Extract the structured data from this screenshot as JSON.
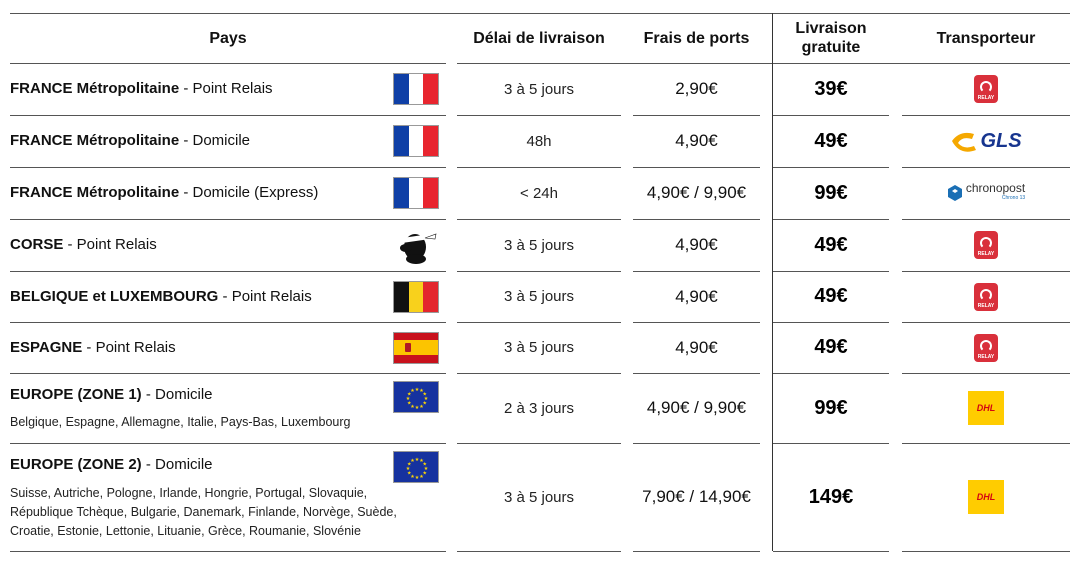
{
  "headers": {
    "pays": "Pays",
    "delai": "Délai de livraison",
    "frais": "Frais de ports",
    "livraison_line1": "Livraison",
    "livraison_line2": "gratuite",
    "transporteur": "Transporteur"
  },
  "rows": [
    {
      "name_bold": "FRANCE Métropolitaine",
      "name_rest": " - Point Relais",
      "flag": "france-flag",
      "delay": "3 à 5 jours",
      "fees": "2,90€",
      "free": "39€",
      "carrier": "mondial-relay-logo",
      "carrier_text": "RELAY"
    },
    {
      "name_bold": "FRANCE Métropolitaine",
      "name_rest": " - Domicile",
      "flag": "france-flag",
      "delay": "48h",
      "fees": "4,90€",
      "free": "49€",
      "carrier": "gls-logo",
      "carrier_text": "GLS"
    },
    {
      "name_bold": "FRANCE Métropolitaine",
      "name_rest": " - Domicile (Express)",
      "flag": "france-flag",
      "delay": "< 24h",
      "fees": "4,90€  / 9,90€",
      "free": "99€",
      "carrier": "chronopost-logo",
      "carrier_text": "chronopost",
      "carrier_sub": "Chrono 13"
    },
    {
      "name_bold": "CORSE",
      "name_rest": " - Point Relais",
      "flag": "corsica-flag",
      "delay": "3 à 5 jours",
      "fees": "4,90€",
      "free": "49€",
      "carrier": "mondial-relay-logo",
      "carrier_text": "RELAY"
    },
    {
      "name_bold": "BELGIQUE et LUXEMBOURG",
      "name_rest": " - Point Relais",
      "flag": "belgium-flag",
      "delay": "3 à 5 jours",
      "fees": "4,90€",
      "free": "49€",
      "carrier": "mondial-relay-logo",
      "carrier_text": "RELAY"
    },
    {
      "name_bold": "ESPAGNE",
      "name_rest": " - Point Relais",
      "flag": "spain-flag",
      "delay": "3 à 5 jours",
      "fees": "4,90€",
      "free": "49€",
      "carrier": "mondial-relay-logo",
      "carrier_text": "RELAY"
    },
    {
      "name_bold": "EUROPE (ZONE 1)",
      "name_rest": " - Domicile",
      "flag": "eu-flag",
      "sub": "Belgique, Espagne, Allemagne, Italie, Pays-Bas, Luxembourg",
      "delay": "2 à 3 jours",
      "fees": "4,90€ / 9,90€",
      "free": "99€",
      "carrier": "dhl-logo",
      "carrier_text": "DHL"
    },
    {
      "name_bold": "EUROPE (ZONE 2)",
      "name_rest": " - Domicile",
      "flag": "eu-flag",
      "sub1": "Suisse, Autriche, Pologne, Irlande, Hongrie, Portugal, Slovaquie,",
      "sub2": "République Tchèque, Bulgarie, Danemark, Finlande, Norvège, Suède,",
      "sub3": "Croatie, Estonie, Lettonie, Lituanie, Grèce, Roumanie, Slovénie",
      "delay": "3 à 5 jours",
      "fees": "7,90€ / 14,90€",
      "free": "149€",
      "carrier": "dhl-logo",
      "carrier_text": "DHL"
    }
  ],
  "colors": {
    "mondial_relay": "#d9303b",
    "gls_yellow": "#f5a800",
    "gls_blue": "#17358f",
    "chronopost_blue": "#1a6fb5",
    "dhl_yellow": "#ffcc00",
    "dhl_red": "#d40511"
  }
}
